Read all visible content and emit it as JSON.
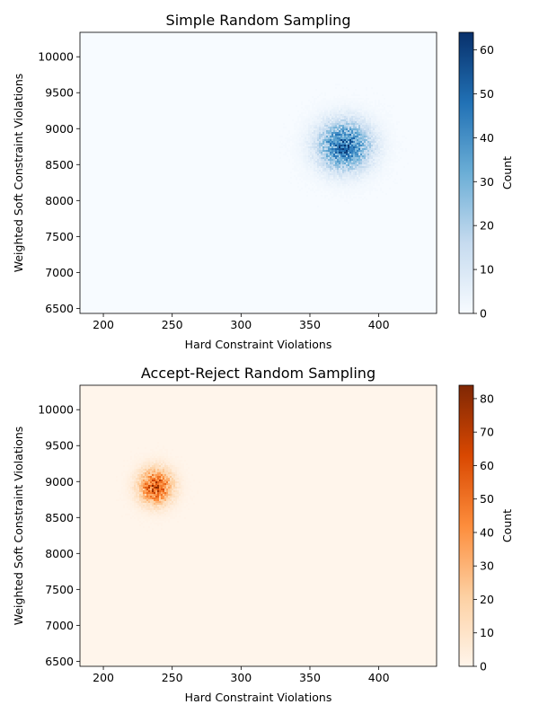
{
  "chart_data": [
    {
      "type": "heatmap",
      "title": "Simple Random Sampling",
      "xlabel": "Hard Constraint Violations",
      "ylabel": "Weighted Soft Constraint Violations",
      "xlim": [
        183,
        442
      ],
      "ylim": [
        6430,
        10340
      ],
      "xticks": [
        200,
        250,
        300,
        350,
        400
      ],
      "yticks": [
        6500,
        7000,
        7500,
        8000,
        8500,
        9000,
        9500,
        10000
      ],
      "colormap": "Blues",
      "cmap_colors": [
        "#f7fbff",
        "#c6dbef",
        "#6baed6",
        "#2171b5",
        "#08306b"
      ],
      "colorbar_label": "Count",
      "colorbar_range": [
        0,
        64
      ],
      "colorbar_ticks": [
        0,
        10,
        20,
        30,
        40,
        50,
        60
      ],
      "grid": false,
      "clusters": [
        {
          "x_center": 375,
          "y_center": 8760,
          "x_std": 13,
          "y_std": 230,
          "peak_count": 64
        }
      ]
    },
    {
      "type": "heatmap",
      "title": "Accept-Reject Random Sampling",
      "xlabel": "Hard Constraint Violations",
      "ylabel": "Weighted Soft Constraint Violations",
      "xlim": [
        183,
        442
      ],
      "ylim": [
        6430,
        10340
      ],
      "xticks": [
        200,
        250,
        300,
        350,
        400
      ],
      "yticks": [
        6500,
        7000,
        7500,
        8000,
        8500,
        9000,
        9500,
        10000
      ],
      "colormap": "Oranges",
      "cmap_colors": [
        "#fff5eb",
        "#fdd0a2",
        "#fd8d3c",
        "#d94801",
        "#7f2704"
      ],
      "colorbar_label": "Count",
      "colorbar_range": [
        0,
        84
      ],
      "colorbar_ticks": [
        0,
        10,
        20,
        30,
        40,
        50,
        60,
        70,
        80
      ],
      "grid": false,
      "clusters": [
        {
          "x_center": 238,
          "y_center": 8930,
          "x_std": 8,
          "y_std": 160,
          "peak_count": 84
        }
      ]
    }
  ]
}
